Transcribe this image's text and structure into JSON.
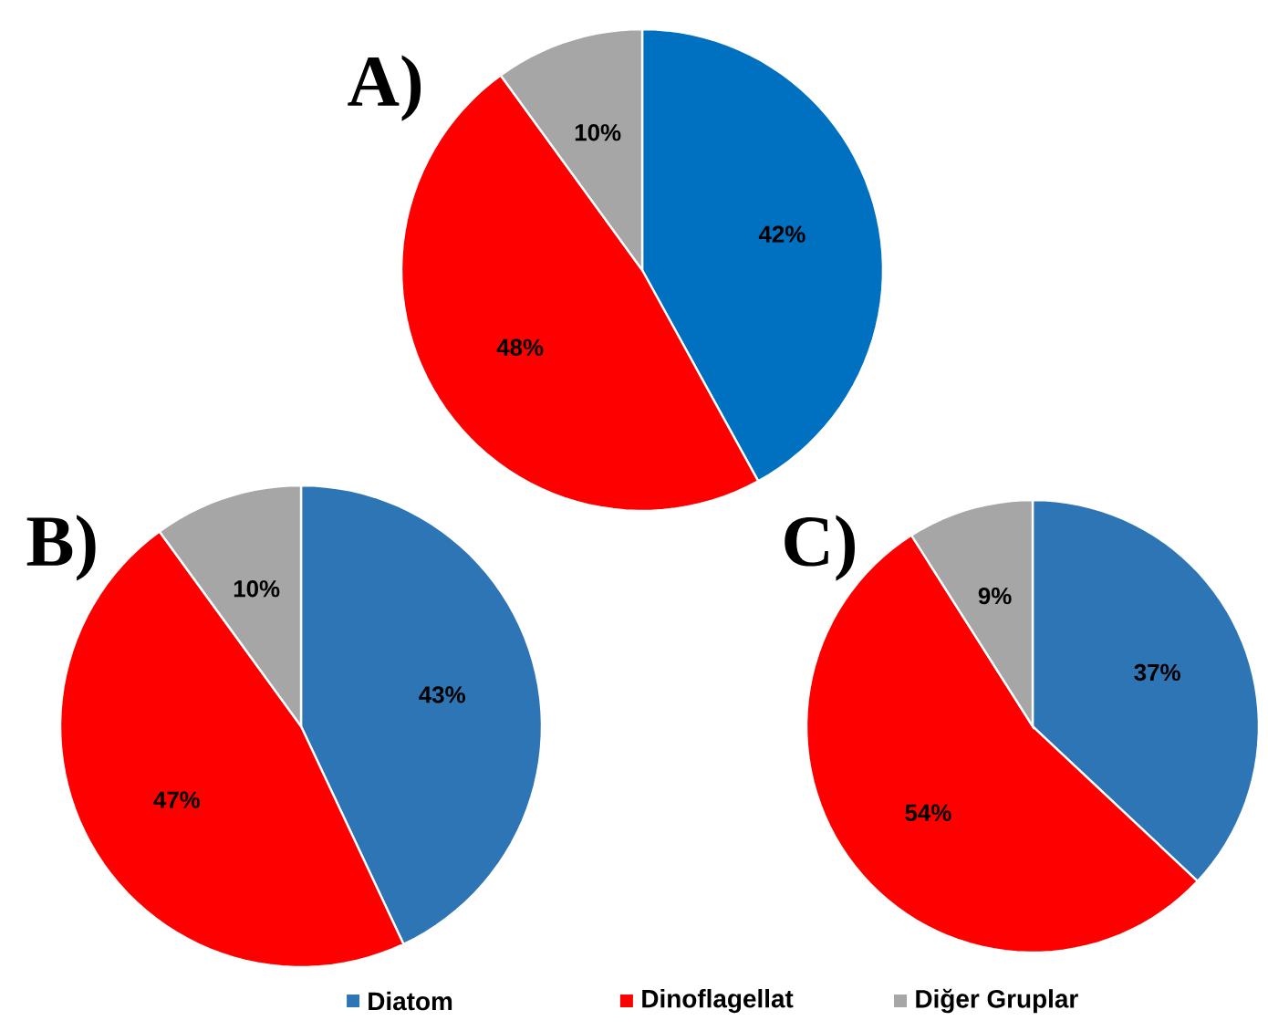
{
  "chart_data": [
    {
      "type": "pie",
      "title": "A)",
      "values": [
        42,
        48,
        10
      ],
      "colors": [
        "#0070c0",
        "#ff0000",
        "#a6a6a6"
      ],
      "value_labels": [
        "42%",
        "48%",
        "10%"
      ]
    },
    {
      "type": "pie",
      "title": "B)",
      "values": [
        43,
        47,
        10
      ],
      "colors": [
        "#2e75b6",
        "#ff0000",
        "#a6a6a6"
      ],
      "value_labels": [
        "43%",
        "47%",
        "10%"
      ]
    },
    {
      "type": "pie",
      "title": "C)",
      "categories": [
        "Diatom",
        "Dinoflagellat",
        "Diğer Gruplar"
      ],
      "values": [
        37,
        54,
        9
      ],
      "colors": [
        "#2e75b6",
        "#ff0000",
        "#a6a6a6"
      ],
      "value_labels": [
        "37%",
        "54%",
        "9%"
      ],
      "legend": "bottom"
    }
  ]
}
